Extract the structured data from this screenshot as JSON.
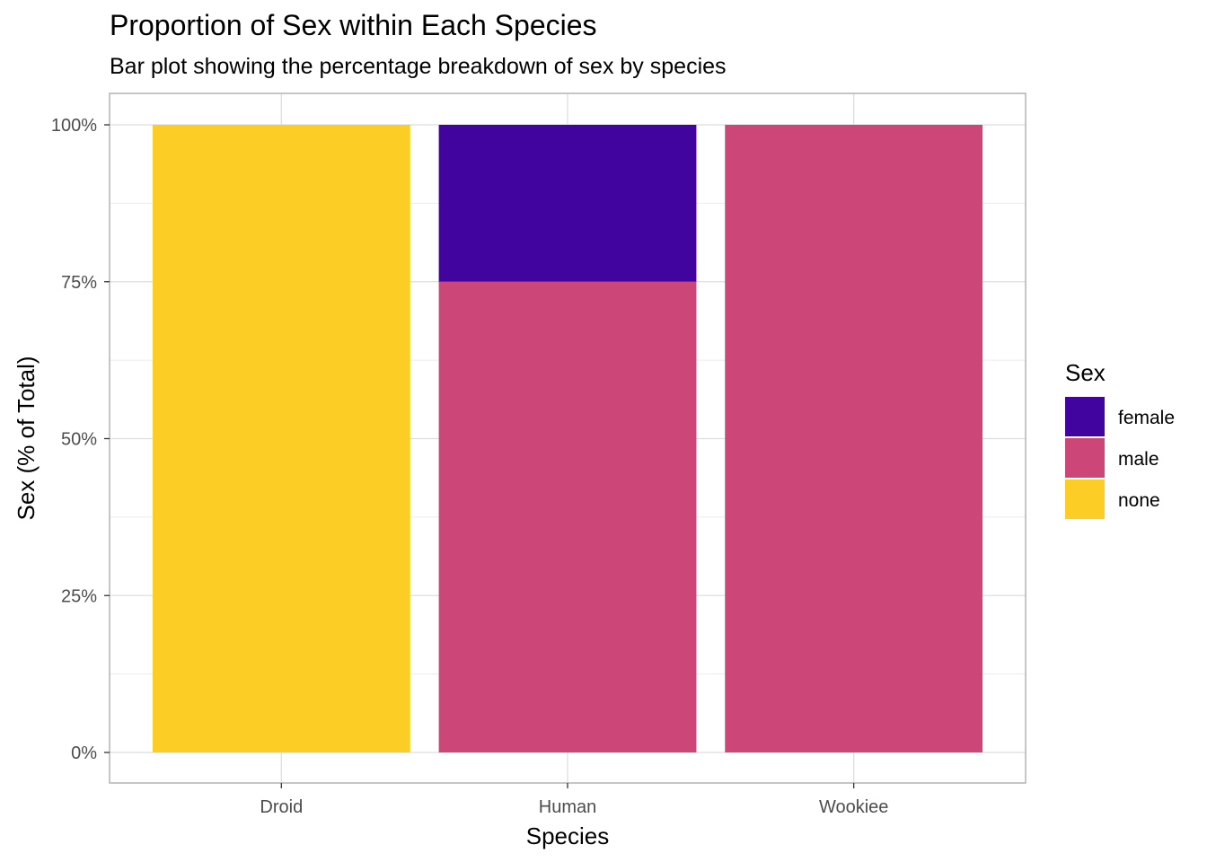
{
  "chart_data": {
    "type": "bar",
    "stacked": true,
    "title": "Proportion of Sex within Each Species",
    "subtitle": "Bar plot showing the percentage breakdown of sex by species",
    "xlabel": "Species",
    "ylabel": "Sex (% of Total)",
    "categories": [
      "Droid",
      "Human",
      "Wookiee"
    ],
    "series": [
      {
        "name": "female",
        "color": "#42049E",
        "values": [
          0,
          25,
          0
        ]
      },
      {
        "name": "male",
        "color": "#CC4678",
        "values": [
          0,
          75,
          100
        ]
      },
      {
        "name": "none",
        "color": "#FCCE25",
        "values": [
          100,
          0,
          0
        ]
      }
    ],
    "stack_order_bottom_to_top": [
      "none",
      "male",
      "female"
    ],
    "ylim": [
      0,
      100
    ],
    "yticks": [
      0,
      25,
      50,
      75,
      100
    ],
    "ytick_labels": [
      "0%",
      "25%",
      "50%",
      "75%",
      "100%"
    ],
    "grid": true,
    "legend": {
      "title": "Sex",
      "position": "right"
    }
  }
}
